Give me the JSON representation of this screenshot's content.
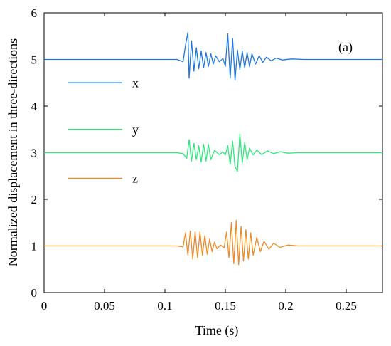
{
  "chart_data": {
    "type": "line",
    "xlabel": "Time (s)",
    "ylabel": "Normalized displacement in three-directions",
    "annotation": "(a)",
    "xlim": [
      0,
      0.28
    ],
    "ylim": [
      0,
      6
    ],
    "xticks": [
      0,
      0.05,
      0.1,
      0.15,
      0.2,
      0.25
    ],
    "xtick_labels": [
      "0",
      "0.05",
      "0.1",
      "0.15",
      "0.2",
      "0.25"
    ],
    "yticks": [
      0,
      1,
      2,
      3,
      4,
      5,
      6
    ],
    "ytick_labels": [
      "0",
      "1",
      "2",
      "3",
      "4",
      "5",
      "6"
    ],
    "grid": false,
    "legend_position": "left",
    "series": [
      {
        "name": "x",
        "color": "#1f77e0",
        "x": [
          0,
          0.11,
          0.115,
          0.117,
          0.119,
          0.12,
          0.122,
          0.124,
          0.126,
          0.128,
          0.13,
          0.132,
          0.134,
          0.136,
          0.138,
          0.14,
          0.142,
          0.145,
          0.148,
          0.15,
          0.152,
          0.154,
          0.156,
          0.158,
          0.16,
          0.162,
          0.164,
          0.166,
          0.168,
          0.17,
          0.172,
          0.175,
          0.178,
          0.181,
          0.184,
          0.188,
          0.192,
          0.197,
          0.205,
          0.215,
          0.28
        ],
        "values": [
          5.0,
          5.0,
          4.95,
          5.3,
          5.58,
          4.6,
          5.4,
          4.75,
          5.25,
          4.8,
          5.18,
          4.82,
          5.15,
          4.85,
          5.12,
          4.9,
          5.08,
          4.95,
          5.02,
          4.85,
          5.55,
          4.6,
          5.45,
          4.55,
          5.2,
          4.78,
          5.18,
          4.82,
          5.15,
          4.85,
          5.12,
          4.9,
          5.08,
          4.94,
          5.05,
          4.97,
          5.03,
          4.99,
          5.01,
          5.0,
          5.0
        ]
      },
      {
        "name": "y",
        "color": "#2ee87a",
        "x": [
          0,
          0.11,
          0.115,
          0.118,
          0.12,
          0.122,
          0.124,
          0.126,
          0.128,
          0.13,
          0.132,
          0.134,
          0.136,
          0.138,
          0.141,
          0.145,
          0.148,
          0.15,
          0.152,
          0.154,
          0.156,
          0.158,
          0.16,
          0.162,
          0.164,
          0.166,
          0.168,
          0.17,
          0.173,
          0.176,
          0.18,
          0.185,
          0.19,
          0.195,
          0.202,
          0.21,
          0.28
        ],
        "values": [
          3.0,
          3.0,
          2.98,
          2.88,
          3.28,
          2.82,
          3.2,
          2.85,
          3.15,
          2.8,
          3.18,
          2.82,
          3.18,
          2.85,
          3.05,
          2.96,
          3.02,
          2.95,
          3.15,
          2.75,
          3.25,
          2.7,
          2.6,
          3.4,
          2.78,
          3.22,
          2.85,
          3.1,
          2.95,
          3.06,
          2.96,
          3.04,
          2.98,
          3.02,
          2.99,
          3.0,
          3.0
        ]
      },
      {
        "name": "z",
        "color": "#f08a24",
        "x": [
          0,
          0.11,
          0.115,
          0.117,
          0.119,
          0.121,
          0.123,
          0.125,
          0.127,
          0.129,
          0.131,
          0.133,
          0.135,
          0.137,
          0.139,
          0.141,
          0.143,
          0.146,
          0.149,
          0.151,
          0.153,
          0.155,
          0.157,
          0.159,
          0.161,
          0.163,
          0.165,
          0.167,
          0.169,
          0.171,
          0.173,
          0.176,
          0.179,
          0.182,
          0.186,
          0.19,
          0.195,
          0.202,
          0.21,
          0.28
        ],
        "values": [
          1.0,
          1.0,
          0.98,
          1.28,
          0.8,
          1.32,
          0.72,
          1.3,
          0.75,
          1.3,
          0.8,
          1.22,
          0.82,
          1.15,
          0.88,
          1.08,
          0.94,
          1.02,
          0.96,
          1.3,
          0.75,
          1.5,
          0.62,
          1.55,
          0.6,
          1.42,
          0.68,
          1.35,
          0.72,
          1.28,
          0.8,
          1.18,
          0.88,
          1.1,
          0.93,
          1.06,
          0.97,
          1.02,
          1.0,
          1.0
        ]
      }
    ]
  }
}
